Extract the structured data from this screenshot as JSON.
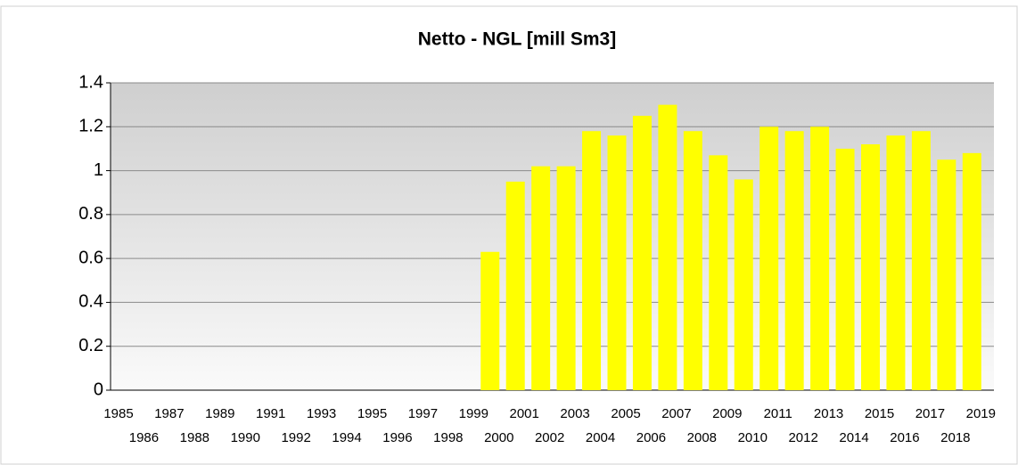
{
  "chart_data": {
    "type": "bar",
    "title": "Netto - NGL [mill Sm3]",
    "categories": [
      "1985",
      "1986",
      "1987",
      "1988",
      "1989",
      "1990",
      "1991",
      "1992",
      "1993",
      "1994",
      "1995",
      "1996",
      "1997",
      "1998",
      "1999",
      "2000",
      "2001",
      "2002",
      "2003",
      "2004",
      "2005",
      "2006",
      "2007",
      "2008",
      "2009",
      "2010",
      "2011",
      "2012",
      "2013",
      "2014",
      "2015",
      "2016",
      "2017",
      "2018",
      "2019"
    ],
    "values": [
      null,
      null,
      null,
      null,
      null,
      null,
      null,
      null,
      null,
      null,
      null,
      null,
      null,
      null,
      null,
      0.63,
      0.95,
      1.02,
      1.02,
      1.18,
      1.16,
      1.25,
      1.3,
      1.18,
      1.07,
      0.96,
      1.2,
      1.18,
      1.2,
      1.1,
      1.12,
      1.16,
      1.18,
      1.05,
      1.08
    ],
    "color": "#ffff00",
    "ylim": [
      0,
      1.4
    ],
    "yticks": [
      0,
      0.2,
      0.4,
      0.6,
      0.8,
      1,
      1.2,
      1.4
    ],
    "grid": true
  }
}
